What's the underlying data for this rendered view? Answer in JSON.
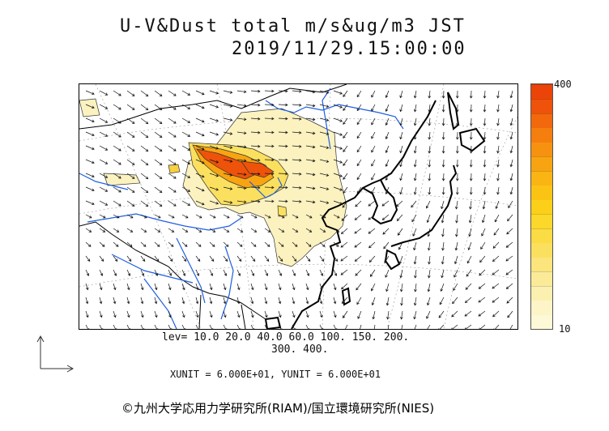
{
  "title": {
    "line1": "U-V&Dust total m/s&ug/m3 JST",
    "line2": "2019/11/29.15:00:00"
  },
  "scale": {
    "max_label": "400",
    "min_label": "10",
    "colors": [
      "#fdf8d6",
      "#fdf5c8",
      "#fcf0b0",
      "#fbeb98",
      "#fbe57c",
      "#fbe060",
      "#fbdc44",
      "#fbd82a",
      "#fcd018",
      "#fbc414",
      "#fab514",
      "#f8a412",
      "#f79210",
      "#f47e0e",
      "#f2680c",
      "#ef520a",
      "#ec4408"
    ]
  },
  "levels": {
    "line1": "lev= 10.0 20.0 40.0 60.0 100. 150. 200.",
    "line2": "300. 400."
  },
  "units": "XUNIT = 6.000E+01, YUNIT = 6.000E+01",
  "credit": "©九州大学応用力学研究所(RIAM)/国立環境研究所(NIES)",
  "colors": {
    "coast": "#000000",
    "border": "#000000",
    "river": "#1f5fe0",
    "dust_low": "#fbf2c0",
    "dust_mid": "#f8d040",
    "dust_high": "#f05010",
    "vector": "#111111"
  }
}
